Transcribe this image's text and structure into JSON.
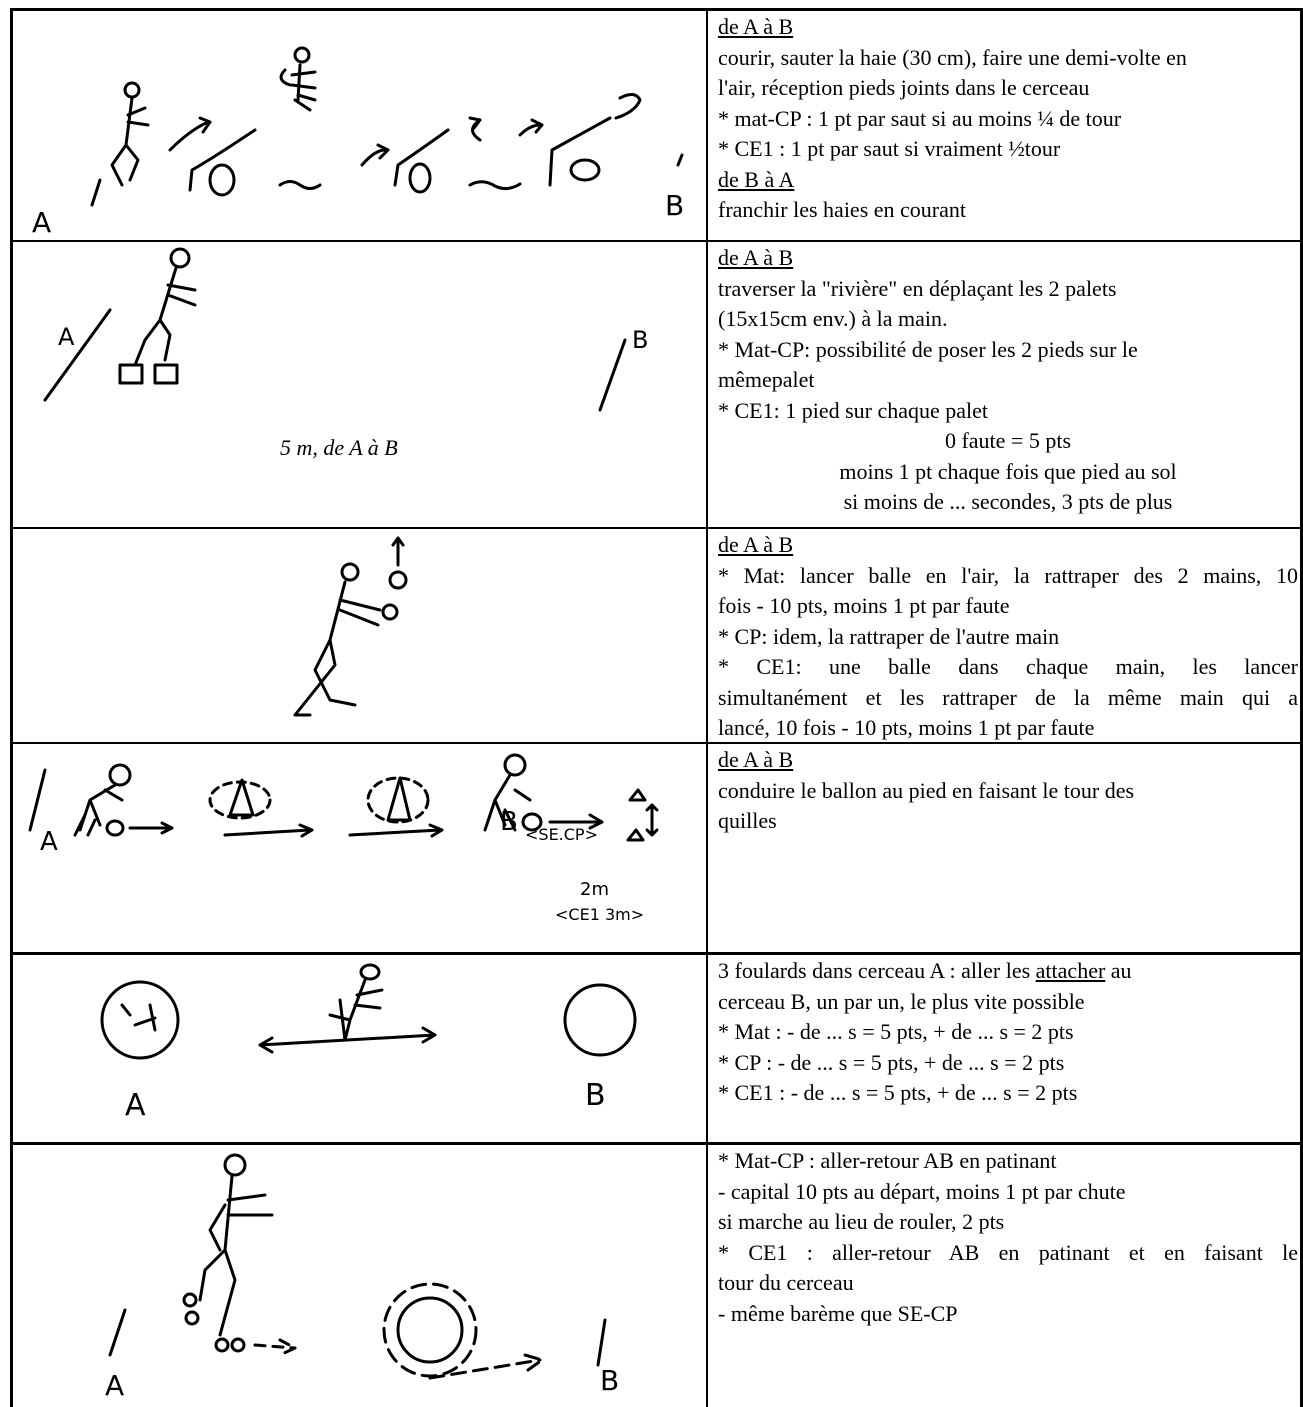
{
  "rows": [
    {
      "sketch": {
        "labels": [
          "A",
          "B"
        ]
      },
      "text": [
        "de A à B",
        "courir, sauter la haie (30 cm), faire une demi-volte en",
        "l'air, réception pieds joints dans le cerceau",
        "* mat-CP : 1 pt par saut si au moins ¼ de tour",
        "* CE1 : 1 pt par saut si vraiment ½tour",
        "de B à A",
        "franchir les haies en courant"
      ]
    },
    {
      "sketch": {
        "labels": [
          "A",
          "B"
        ],
        "caption": "5 m, de A à B"
      },
      "text": [
        "de A à B",
        "traverser la \"rivière\" en déplaçant les 2 palets",
        "(15x15cm env.) à la main.",
        "* Mat-CP: possibilité de poser les 2 pieds sur le",
        "mêmepalet",
        "* CE1: 1 pied sur chaque palet",
        "0 faute = 5 pts",
        "moins 1 pt chaque fois que pied au sol",
        "si moins de ... secondes, 3 pts de plus"
      ]
    },
    {
      "sketch": {},
      "text": [
        "de A à B",
        "* Mat: lancer balle en l'air, la rattraper des 2 mains, 10",
        "fois - 10 pts, moins 1 pt par faute",
        "* CP: idem, la rattraper de l'autre main",
        "* CE1: une balle dans chaque main, les lancer",
        "simultanément et les rattraper de la même main qui a",
        "lancé, 10 fois - 10 pts, moins 1 pt par faute"
      ]
    },
    {
      "sketch": {
        "labels": [
          "A",
          "B",
          "<SE.CP>",
          "2m",
          "<CE1 3m>"
        ]
      },
      "text": [
        "de A à B",
        "conduire le ballon au pied en faisant le tour des",
        "quilles"
      ]
    },
    {
      "sketch": {
        "labels": [
          "A",
          "B"
        ]
      },
      "text": [
        [
          "3 foulards dans cerceau A : aller les",
          "attacher",
          "au"
        ],
        "cerceau B, un par un, le plus vite possible",
        "* Mat : - de ... s = 5 pts, + de ... s = 2 pts",
        "* CP : - de ... s = 5 pts, + de ... s = 2 pts",
        "* CE1 : - de ... s = 5 pts, + de ... s = 2 pts"
      ]
    },
    {
      "sketch": {
        "labels": [
          "A",
          "B"
        ]
      },
      "text": [
        "* Mat-CP : aller-retour AB en patinant",
        "- capital 10 pts au départ, moins 1 pt par chute",
        "si marche au lieu de rouler, 2 pts",
        "* CE1 : aller-retour AB en patinant et en faisant le",
        "tour du cerceau",
        "- même barème que SE-CP"
      ]
    }
  ]
}
